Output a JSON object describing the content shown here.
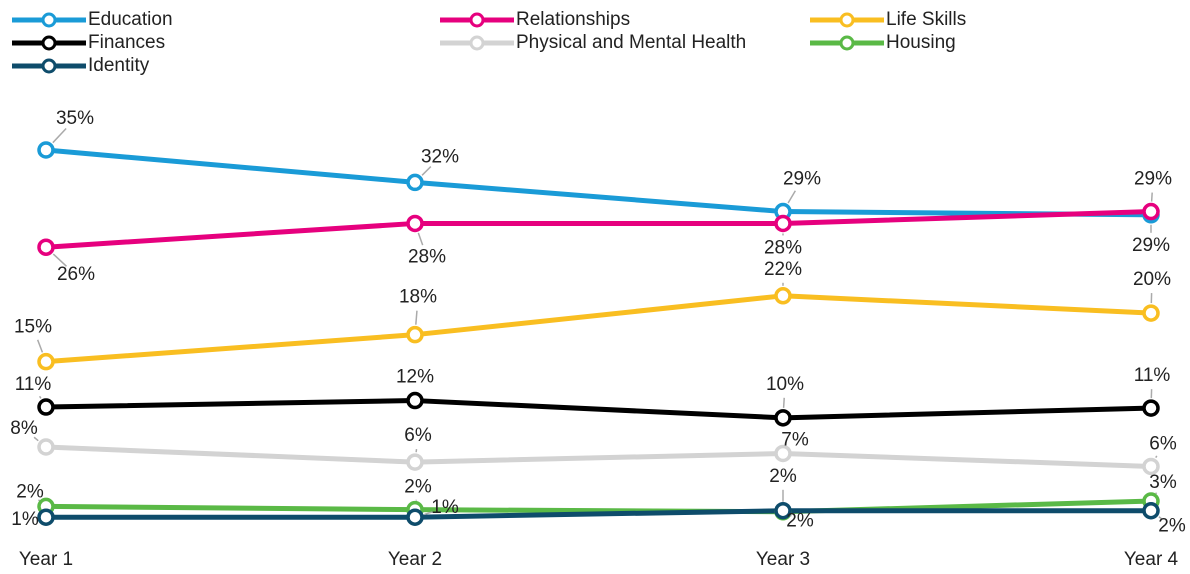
{
  "chart_data": {
    "type": "line",
    "categories": [
      "Year 1",
      "Year 2",
      "Year 3",
      "Year 4"
    ],
    "ylim": [
      0,
      35
    ],
    "series": [
      {
        "name": "Education",
        "color": "#1a9bd7",
        "values": [
          35,
          32,
          29.3,
          29
        ],
        "value_labels": [
          "35%",
          "32%",
          "29%",
          "29%"
        ]
      },
      {
        "name": "Relationships",
        "color": "#e6007e",
        "values": [
          26,
          28.2,
          28.2,
          29.3
        ],
        "value_labels": [
          "26%",
          "28%",
          "28%",
          "29%"
        ]
      },
      {
        "name": "Life Skills",
        "color": "#f9be21",
        "values": [
          15.4,
          17.9,
          21.5,
          19.9
        ],
        "value_labels": [
          "15%",
          "18%",
          "22%",
          "20%"
        ]
      },
      {
        "name": "Finances",
        "color": "#000000",
        "values": [
          11.2,
          11.8,
          10.2,
          11.1
        ],
        "value_labels": [
          "11%",
          "12%",
          "10%",
          "11%"
        ]
      },
      {
        "name": "Physical and Mental Health",
        "color": "#d3d3d3",
        "values": [
          7.5,
          6.1,
          6.9,
          5.7
        ],
        "value_labels": [
          "8%",
          "6%",
          "7%",
          "6%"
        ]
      },
      {
        "name": "Housing",
        "color": "#5ab946",
        "values": [
          2,
          1.7,
          1.5,
          2.5
        ],
        "value_labels": [
          "2%",
          "2%",
          "2%",
          "3%"
        ]
      },
      {
        "name": "Identity",
        "color": "#0e4c6b",
        "values": [
          1,
          1,
          1.6,
          1.6
        ],
        "value_labels": [
          "1%",
          "1%",
          "2%",
          "2%"
        ]
      }
    ]
  }
}
